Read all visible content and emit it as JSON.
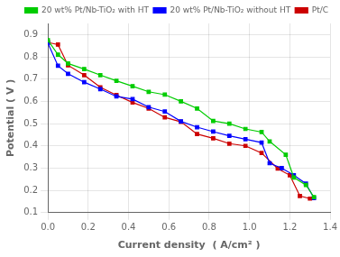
{
  "chart_data": {
    "type": "line",
    "xlabel": "Current density  ( A/cm² )",
    "ylabel": "Potential ( V )",
    "xlim": [
      0,
      1.4
    ],
    "ylim": [
      0.1,
      0.95
    ],
    "xticks": [
      {
        "value": 0,
        "label": "0.0"
      },
      0.2,
      0.4,
      0.6,
      0.8,
      {
        "value": 1,
        "label": "1.0"
      },
      1.2,
      1.4
    ],
    "yticks": [
      0.1,
      0.2,
      0.3,
      0.4,
      0.5,
      0.6,
      0.7,
      0.8,
      0.9
    ],
    "grid": true,
    "legend": "upper right",
    "series": [
      {
        "name": "20 wt% Pt/Nb-TiO₂ with HT",
        "color": "#00cc00",
        "marker": "square",
        "x": [
          0.0,
          0.05,
          0.1,
          0.18,
          0.26,
          0.34,
          0.42,
          0.5,
          0.58,
          0.66,
          0.74,
          0.82,
          0.9,
          0.98,
          1.06,
          1.1,
          1.18,
          1.22,
          1.28,
          1.32
        ],
        "values": [
          0.875,
          0.81,
          0.77,
          0.745,
          0.718,
          0.692,
          0.668,
          0.643,
          0.63,
          0.6,
          0.568,
          0.512,
          0.5,
          0.476,
          0.462,
          0.42,
          0.36,
          0.258,
          0.224,
          0.17
        ]
      },
      {
        "name": "20 wt% Pt/Nb-TiO₂ without HT",
        "color": "#0000ff",
        "marker": "square",
        "x": [
          0.0,
          0.05,
          0.1,
          0.18,
          0.26,
          0.34,
          0.42,
          0.5,
          0.58,
          0.66,
          0.74,
          0.82,
          0.9,
          0.98,
          1.06,
          1.1,
          1.16,
          1.22,
          1.28,
          1.32
        ],
        "values": [
          0.862,
          0.76,
          0.724,
          0.686,
          0.655,
          0.622,
          0.61,
          0.574,
          0.554,
          0.51,
          0.484,
          0.464,
          0.445,
          0.43,
          0.415,
          0.322,
          0.3,
          0.268,
          0.23,
          0.165
        ]
      },
      {
        "name": "Pt/C",
        "color": "#cc0000",
        "marker": "square",
        "x": [
          0.0,
          0.05,
          0.1,
          0.18,
          0.26,
          0.34,
          0.42,
          0.5,
          0.58,
          0.66,
          0.74,
          0.82,
          0.9,
          0.98,
          1.06,
          1.14,
          1.2,
          1.25,
          1.3
        ],
        "values": [
          0.865,
          0.855,
          0.762,
          0.718,
          0.663,
          0.628,
          0.595,
          0.568,
          0.528,
          0.508,
          0.453,
          0.434,
          0.41,
          0.4,
          0.368,
          0.298,
          0.268,
          0.175,
          0.163
        ]
      }
    ]
  }
}
